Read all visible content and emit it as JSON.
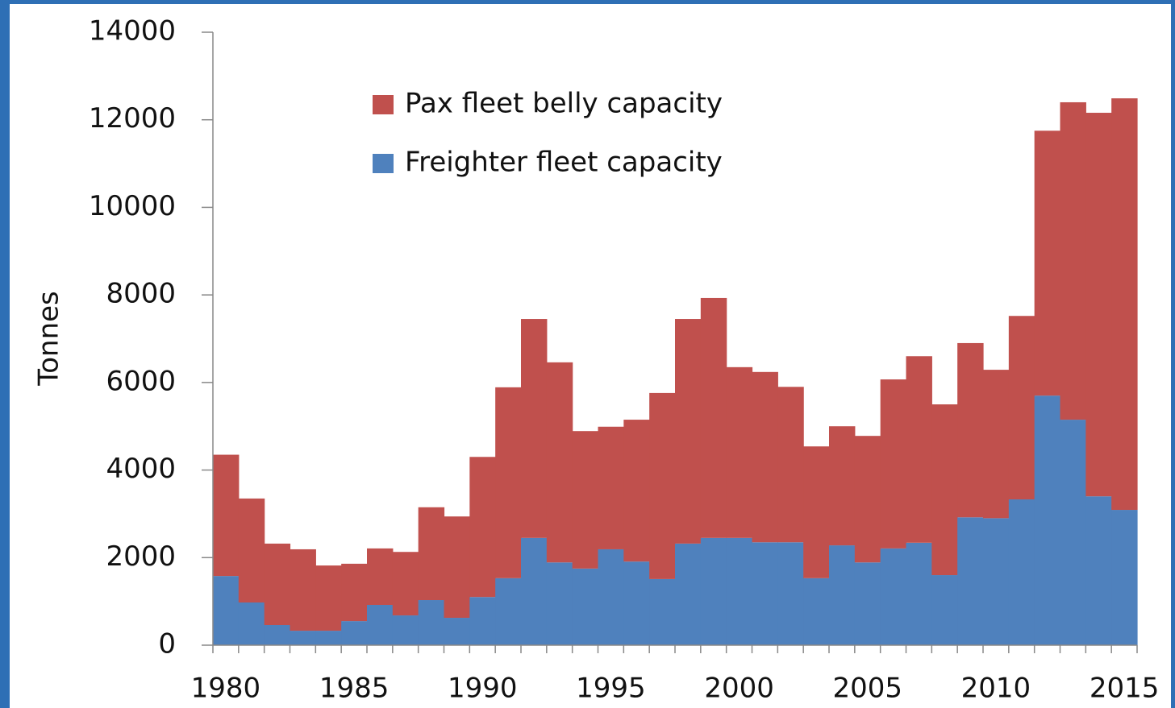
{
  "chart_data": {
    "type": "stacked_bar",
    "y_label": "Tonnes",
    "categories": [
      "1980",
      null,
      null,
      null,
      null,
      "1985",
      null,
      null,
      null,
      null,
      "1990",
      null,
      null,
      null,
      null,
      "1995",
      null,
      null,
      null,
      null,
      "2000",
      null,
      null,
      null,
      null,
      "2005",
      null,
      null,
      null,
      null,
      "2010",
      null,
      null,
      null,
      null,
      "2015"
    ],
    "series": [
      {
        "name": "Freighter fleet capacity",
        "color": "#4f81bd",
        "values": [
          1580,
          975,
          460,
          330,
          330,
          550,
          920,
          680,
          1030,
          625,
          1100,
          1530,
          2450,
          1890,
          1750,
          2190,
          1910,
          1510,
          2320,
          2450,
          2450,
          2350,
          2350,
          1530,
          2280,
          1890,
          2210,
          2340,
          1600,
          2920,
          2900,
          3330,
          5700,
          5150,
          3400,
          3090
        ]
      },
      {
        "name": "Pax fleet belly capacity",
        "color": "#c0504d",
        "values": [
          2770,
          2375,
          1860,
          1860,
          1490,
          1310,
          1290,
          1450,
          2120,
          2315,
          3200,
          4360,
          5000,
          4570,
          3140,
          2800,
          3240,
          4250,
          5130,
          5480,
          3900,
          3890,
          3550,
          3010,
          2720,
          2890,
          3860,
          4260,
          3900,
          3980,
          3390,
          4190,
          6050,
          7250,
          8760,
          9400
        ]
      }
    ],
    "ylim": [
      0,
      14000
    ],
    "yticks": [
      0,
      2000,
      4000,
      6000,
      8000,
      10000,
      12000,
      14000
    ],
    "legend": "top"
  }
}
